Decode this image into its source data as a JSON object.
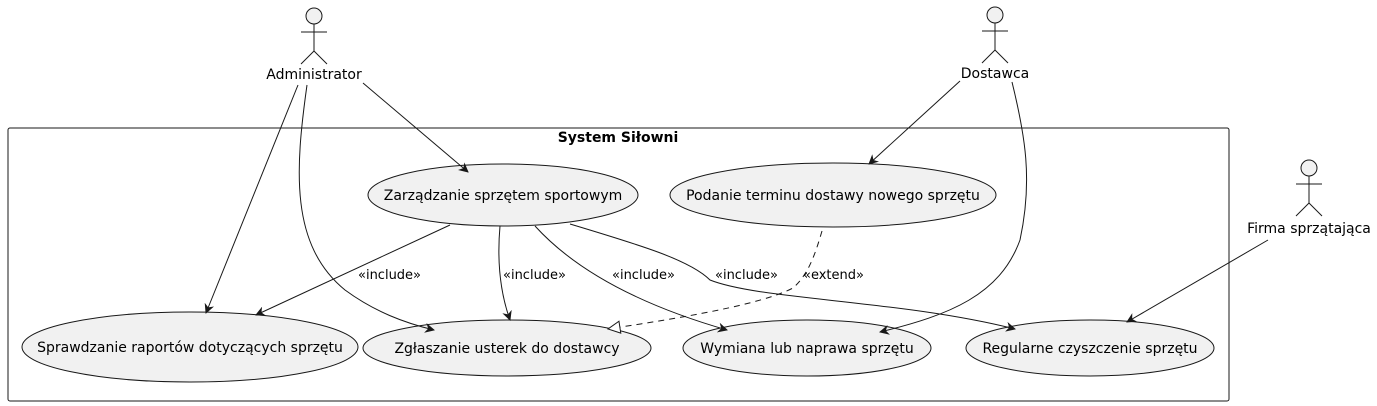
{
  "system": {
    "title": "System Siłowni"
  },
  "actors": {
    "administrator": "Administrator",
    "dostawca": "Dostawca",
    "firma": "Firma sprzątająca"
  },
  "use_cases": {
    "zarzadzanie": "Zarządzanie sprzętem sportowym",
    "podanie": "Podanie terminu dostawy nowego sprzętu",
    "sprawdzanie": "Sprawdzanie raportów dotyczących sprzętu",
    "zglaszanie": "Zgłaszanie usterek do dostawcy",
    "wymiana": "Wymiana lub naprawa sprzętu",
    "regularne": "Regularne czyszczenie sprzętu"
  },
  "relations": {
    "include_1": "«include»",
    "include_2": "«include»",
    "include_3": "«include»",
    "include_4": "«include»",
    "extend_1": "«extend»"
  },
  "colors": {
    "fill": "#f1f1f1",
    "stroke": "#181818"
  }
}
